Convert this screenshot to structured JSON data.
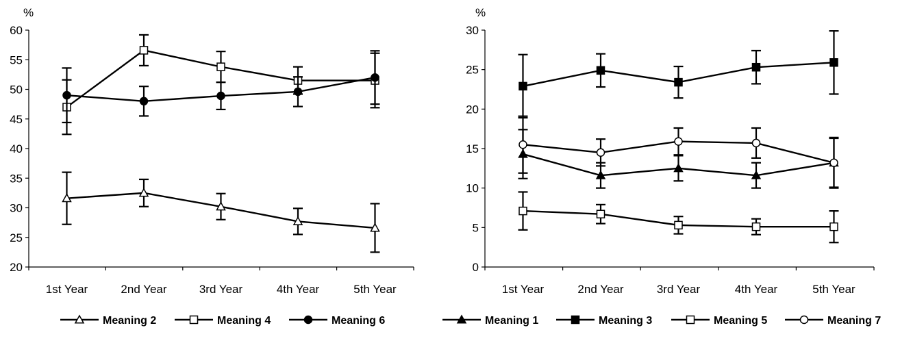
{
  "chart_data": [
    {
      "type": "line",
      "ylabel": "%",
      "categories": [
        "1st Year",
        "2nd Year",
        "3rd Year",
        "4th Year",
        "5th Year"
      ],
      "ylim": [
        20,
        60
      ],
      "yticks": [
        20,
        25,
        30,
        35,
        40,
        45,
        50,
        55,
        60
      ],
      "error_bars": true,
      "grid": false,
      "legend_position": "bottom",
      "series": [
        {
          "name": "Meaning 2",
          "marker": "open-triangle",
          "values": [
            31.6,
            32.5,
            30.2,
            27.7,
            26.6
          ],
          "errors": [
            4.4,
            2.3,
            2.2,
            2.2,
            4.1
          ]
        },
        {
          "name": "Meaning 4",
          "marker": "open-square",
          "values": [
            47.0,
            56.6,
            53.8,
            51.5,
            51.5
          ],
          "errors": [
            4.6,
            2.6,
            2.6,
            2.3,
            4.6
          ]
        },
        {
          "name": "Meaning 6",
          "marker": "filled-circle",
          "values": [
            49.0,
            48.0,
            48.9,
            49.6,
            52.0
          ],
          "errors": [
            4.6,
            2.5,
            2.3,
            2.5,
            4.5
          ]
        }
      ]
    },
    {
      "type": "line",
      "ylabel": "%",
      "categories": [
        "1st Year",
        "2nd Year",
        "3rd Year",
        "4th Year",
        "5th Year"
      ],
      "ylim": [
        0,
        30
      ],
      "yticks": [
        0,
        5,
        10,
        15,
        20,
        25,
        30
      ],
      "error_bars": true,
      "grid": false,
      "legend_position": "bottom",
      "series": [
        {
          "name": "Meaning 1",
          "marker": "filled-triangle",
          "values": [
            14.3,
            11.6,
            12.5,
            11.6,
            13.2
          ],
          "errors": [
            3.1,
            1.6,
            1.6,
            1.6,
            3.1
          ]
        },
        {
          "name": "Meaning 3",
          "marker": "filled-square",
          "values": [
            22.9,
            24.9,
            23.4,
            25.3,
            25.9
          ],
          "errors": [
            4.0,
            2.1,
            2.0,
            2.1,
            4.0
          ]
        },
        {
          "name": "Meaning 5",
          "marker": "open-square",
          "values": [
            7.1,
            6.7,
            5.3,
            5.1,
            5.1
          ],
          "errors": [
            2.4,
            1.2,
            1.1,
            1.0,
            2.0
          ]
        },
        {
          "name": "Meaning 7",
          "marker": "open-circle",
          "values": [
            15.5,
            14.5,
            15.9,
            15.7,
            13.2
          ],
          "errors": [
            3.6,
            1.7,
            1.7,
            1.9,
            3.2
          ]
        }
      ]
    }
  ]
}
